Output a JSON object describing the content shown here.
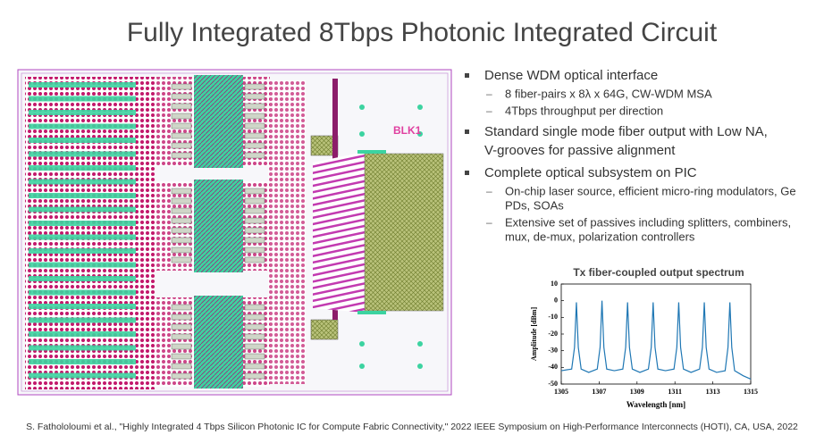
{
  "title": "Fully Integrated 8Tbps Photonic Integrated Circuit",
  "layout_image": {
    "label": "BLK1"
  },
  "bullets": [
    {
      "text": [
        "Dense WDM optical interface"
      ],
      "sub": [
        [
          "8 fiber-pairs x 8λ x 64G, CW-WDM MSA"
        ],
        [
          "4Tbps throughput per direction"
        ]
      ]
    },
    {
      "text": [
        "Standard single mode fiber output with Low NA,",
        "V-grooves for passive alignment"
      ],
      "sub": []
    },
    {
      "text": [
        "Complete optical subsystem on PIC"
      ],
      "sub": [
        [
          "On-chip laser source, efficient micro-ring modulators, Ge",
          "PDs, SOAs"
        ],
        [
          "Extensive set of passives including splitters, combiners,",
          "mux, de-mux, polarization controllers"
        ]
      ]
    }
  ],
  "chart_data": {
    "type": "line",
    "title": "Tx fiber-coupled output spectrum",
    "x_label": "Wavelength [nm]",
    "y_label": "Amplitude [dBm]",
    "xlim": [
      1305,
      1315
    ],
    "ylim": [
      -50,
      10
    ],
    "xticks": [
      1305,
      1307,
      1309,
      1311,
      1313,
      1315
    ],
    "yticks": [
      10,
      0,
      -10,
      -20,
      -30,
      -40,
      -50
    ],
    "series": [
      {
        "color": "#1f77b4",
        "x": [
          1305.0,
          1305.55,
          1305.7,
          1305.8,
          1305.9,
          1306.05,
          1306.45,
          1306.9,
          1307.05,
          1307.15,
          1307.25,
          1307.4,
          1307.8,
          1308.25,
          1308.4,
          1308.5,
          1308.6,
          1308.75,
          1309.15,
          1309.6,
          1309.75,
          1309.85,
          1309.95,
          1310.1,
          1310.5,
          1310.95,
          1311.1,
          1311.2,
          1311.3,
          1311.45,
          1311.85,
          1312.3,
          1312.45,
          1312.55,
          1312.65,
          1312.8,
          1313.2,
          1313.65,
          1313.8,
          1313.9,
          1314.0,
          1314.15,
          1314.6,
          1315.0
        ],
        "values": [
          -42,
          -41,
          -28,
          -1,
          -28,
          -41,
          -43,
          -41,
          -28,
          0,
          -28,
          -41,
          -42,
          -41,
          -28,
          -1,
          -28,
          -41,
          -43,
          -41,
          -28,
          -1,
          -28,
          -41,
          -42,
          -41,
          -28,
          -1,
          -28,
          -41,
          -43,
          -41,
          -28,
          -1,
          -28,
          -41,
          -43,
          -42,
          -28,
          -1,
          -28,
          -42,
          -45,
          -47
        ]
      }
    ]
  },
  "footer": "S. Fathololoumi et al., \"Highly Integrated 4 Tbps Silicon Photonic IC for Compute Fabric Connectivity,\" 2022 IEEE Symposium on High-Performance Interconnects (HOTI), CA, USA, 2022"
}
